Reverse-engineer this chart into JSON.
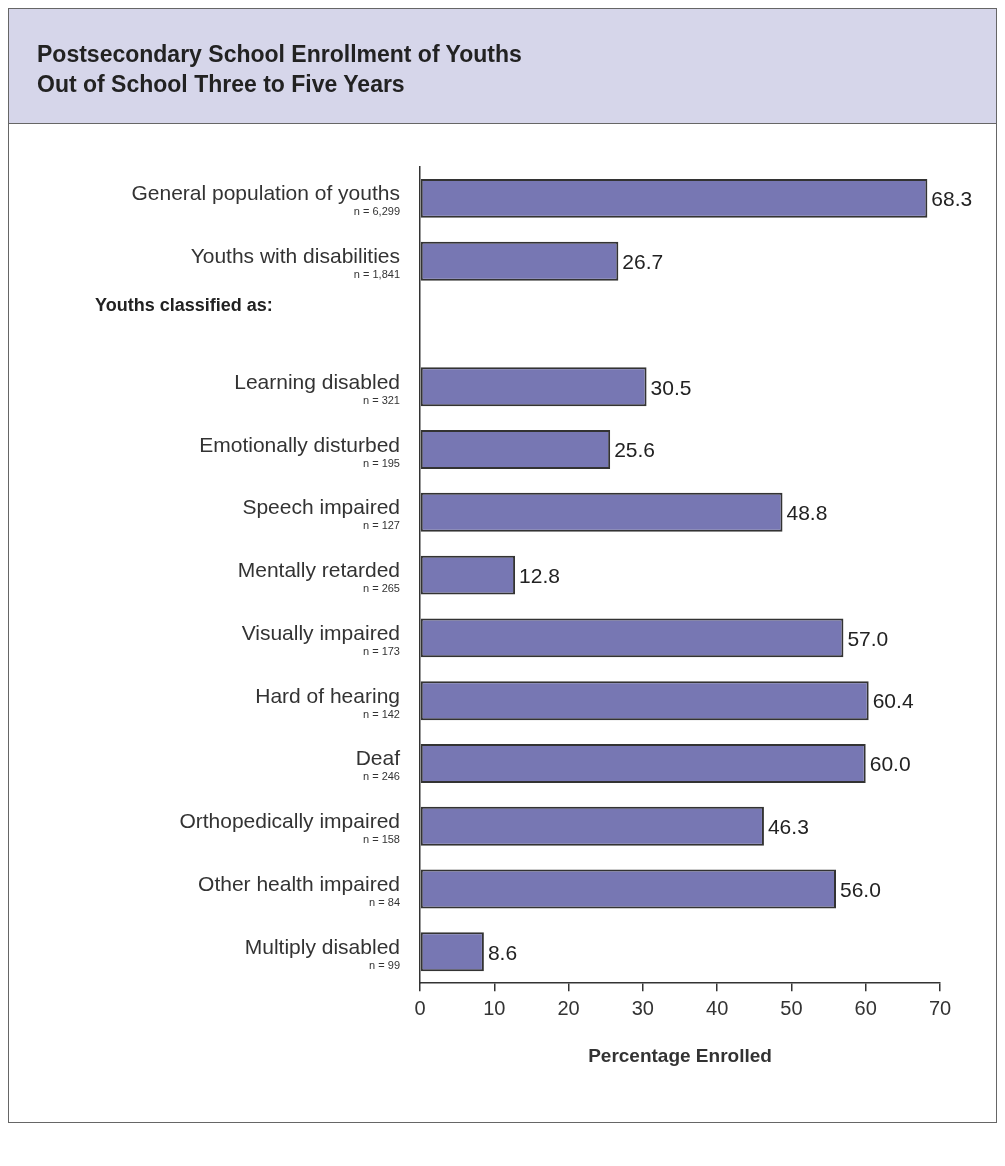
{
  "chart_data": {
    "type": "bar",
    "orientation": "horizontal",
    "title": "Postsecondary School Enrollment of Youths\nOut of School Three to Five Years",
    "xlabel": "Percentage Enrolled",
    "categories": [
      "General population of youths\nn = 6,299",
      "Youths with disabilities\nn = 1,841",
      null,
      "Learning disabled\nn = 321",
      "Emotionally disturbed\nn = 195",
      "Speech impaired\nn = 127",
      "Mentally retarded\nn = 265",
      "Visually impaired\nn = 173",
      "Hard of hearing\nn = 142",
      "Deaf\nn = 246",
      "Orthopedically impaired\nn = 158",
      "Other health impaired\nn = 84",
      "Multiply disabled\nn = 99"
    ],
    "values": [
      68.3,
      26.7,
      null,
      30.5,
      25.6,
      48.8,
      12.8,
      57.0,
      60.4,
      60.0,
      46.3,
      56.0,
      8.6
    ],
    "value_labels": [
      "68.3",
      "26.7",
      null,
      "30.5",
      "25.6",
      "48.8",
      "12.8",
      "57.0",
      "60.4",
      "60.0",
      "46.3",
      "56.0",
      "8.6"
    ],
    "color": "#7777b3",
    "annotations": [
      "Youths classified as:"
    ],
    "xlim": [
      0,
      70
    ],
    "xticks": [
      0,
      10,
      20,
      30,
      40,
      50,
      60,
      70
    ],
    "grid": false,
    "legend": false
  }
}
